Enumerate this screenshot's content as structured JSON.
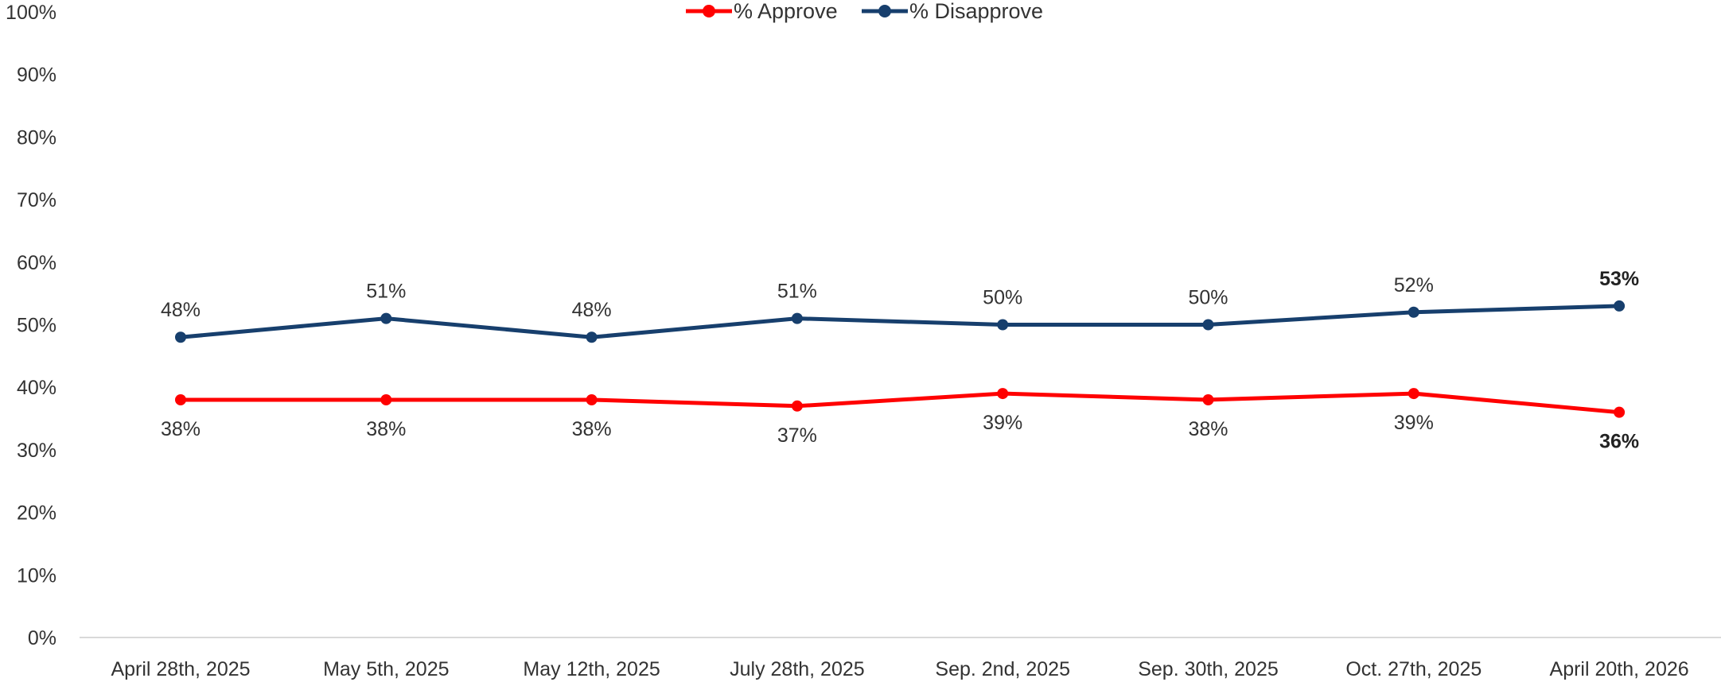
{
  "chart_data": {
    "type": "line",
    "categories": [
      "April 28th, 2025",
      "May 5th, 2025",
      "May 12th, 2025",
      "July 28th, 2025",
      "Sep. 2nd, 2025",
      "Sep. 30th, 2025",
      "Oct. 27th, 2025",
      "April 20th, 2026"
    ],
    "series": [
      {
        "name": "% Approve",
        "color": "#ff0000",
        "values": [
          38,
          38,
          38,
          37,
          39,
          38,
          39,
          36
        ],
        "labels": [
          "38%",
          "38%",
          "38%",
          "37%",
          "39%",
          "38%",
          "39%",
          "36%"
        ]
      },
      {
        "name": "% Disapprove",
        "color": "#173f6d",
        "values": [
          48,
          51,
          48,
          51,
          50,
          50,
          52,
          53
        ],
        "labels": [
          "48%",
          "51%",
          "48%",
          "51%",
          "50%",
          "50%",
          "52%",
          "53%"
        ]
      }
    ],
    "y_ticks": [
      "0%",
      "10%",
      "20%",
      "30%",
      "40%",
      "50%",
      "60%",
      "70%",
      "80%",
      "90%",
      "100%"
    ],
    "ylim": [
      0,
      100
    ],
    "title": "",
    "xlabel": "",
    "ylabel": "",
    "grid": false,
    "legend_position": "top-center",
    "last_point_labels_bold": true
  }
}
